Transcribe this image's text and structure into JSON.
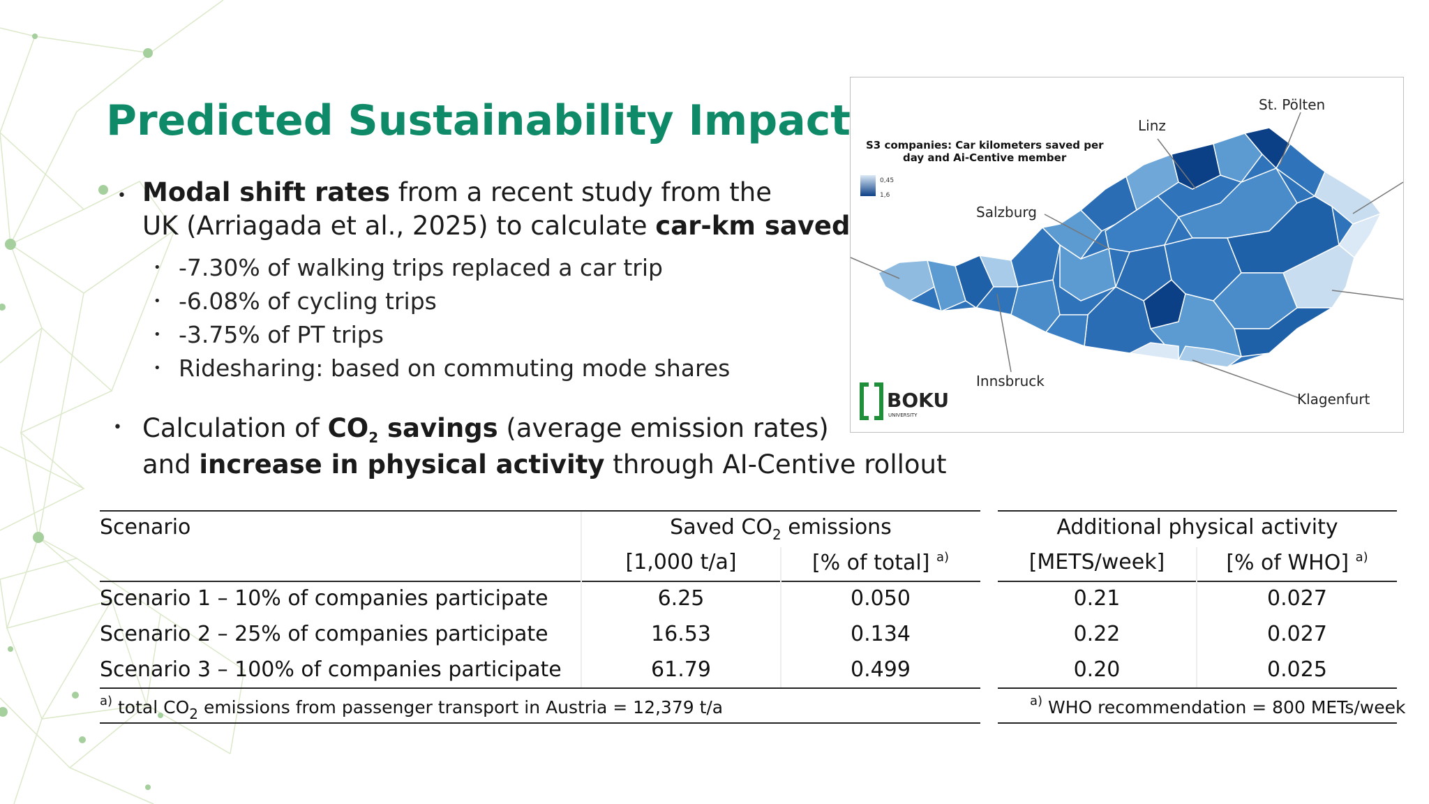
{
  "title": "Predicted Sustainability Impacts",
  "bullets": {
    "b1_bold": "Modal shift rates",
    "b1_text1": " from a recent study from the",
    "b1_line2a": "UK (Arriagada et al., 2025) to calculate ",
    "b1_line2b": "car-km saved",
    "b1_line2c": ":",
    "sub": [
      "-7.30% of walking trips replaced a car trip",
      "-6.08% of cycling trips",
      "-3.75% of PT trips",
      "Ridesharing: based on commuting mode shares"
    ],
    "b2_a": "Calculation of ",
    "b2_co": "CO",
    "b2_sub": "2",
    "b2_savings": " savings",
    "b2_b": " (average emission rates)",
    "b2_line2a": "and ",
    "b2_line2b": "increase in physical activity",
    "b2_line2c": " through AI-Centive rollout"
  },
  "map": {
    "legend_title_1": "S3 companies: Car kilometers saved per",
    "legend_title_2": "day and Ai-Centive member",
    "legend_min": "0,45",
    "legend_max": "1,6",
    "logo_text": "BOKU",
    "logo_sub": "UNIVERSITY",
    "cities": {
      "linz": "Linz",
      "st_poelten": "St. Pölten",
      "salzburg": "Salzburg",
      "innsbruck": "Innsbruck",
      "klagenfurt": "Klagenfurt"
    },
    "colors": {
      "light": "#dbe9f6",
      "mid": "#5b9bd1",
      "dark": "#0b3f86"
    }
  },
  "table_co2": {
    "header_scenario": "Scenario",
    "header_group_a": "Saved CO",
    "header_group_sub": "2",
    "header_group_b": " emissions",
    "col1": "[1,000 t/a]",
    "col2": "[% of total]",
    "col2_note": "a)",
    "rows": [
      {
        "scenario": "Scenario 1 – 10% of companies participate",
        "kt": "6.25",
        "pct": "0.050"
      },
      {
        "scenario": "Scenario 2 – 25% of companies participate",
        "kt": "16.53",
        "pct": "0.134"
      },
      {
        "scenario": "Scenario 3 – 100% of companies participate",
        "kt": "61.79",
        "pct": "0.499"
      }
    ],
    "foot_note": "a)",
    "foot_a": " total CO",
    "foot_sub": "2",
    "foot_b": " emissions from passenger transport in Austria = 12,379 t/a"
  },
  "table_pa": {
    "header_group": "Additional physical activity",
    "col1": "[METS/week]",
    "col2": "[% of WHO]",
    "col2_note": "a)",
    "rows": [
      {
        "mets": "0.21",
        "who": "0.027"
      },
      {
        "mets": "0.22",
        "who": "0.027"
      },
      {
        "mets": "0.20",
        "who": "0.025"
      }
    ],
    "foot_note": "a)",
    "foot_text": " WHO recommendation = 800 METs/week"
  }
}
